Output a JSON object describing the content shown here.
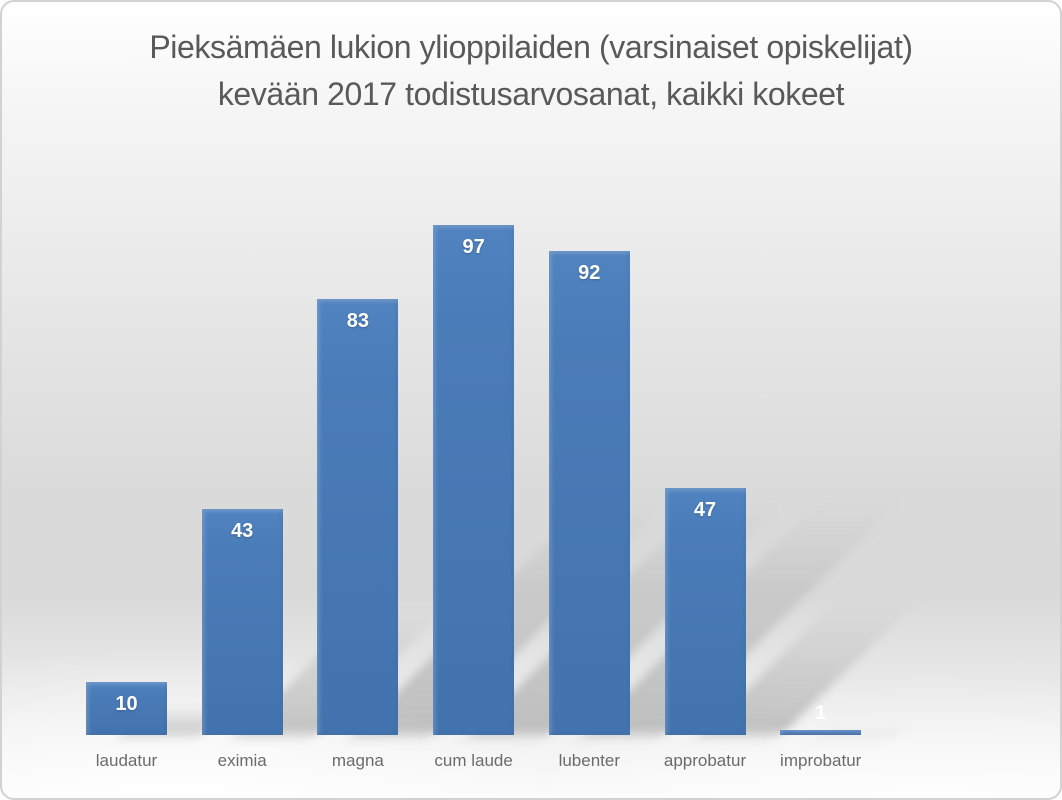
{
  "chart_data": {
    "type": "bar",
    "title": "Pieksämäen lukion ylioppilaiden (varsinaiset opiskelijat) kevään 2017 todistusarvosanat, kaikki kokeet",
    "title_line1": "Pieksämäen lukion ylioppilaiden (varsinaiset opiskelijat)",
    "title_line2": "kevään 2017 todistusarvosanat, kaikki kokeet",
    "categories": [
      "laudatur",
      "eximia",
      "magna",
      "cum laude",
      "lubenter",
      "approbatur",
      "improbatur"
    ],
    "values": [
      10,
      43,
      83,
      97,
      92,
      47,
      1
    ],
    "xlabel": "",
    "ylabel": "",
    "ylim": [
      0,
      100
    ],
    "grid": false,
    "legend": false,
    "axes_visible": false,
    "data_labels": "white, bold, inside end (outside for smallest bar)",
    "colors": {
      "bar_fill_top": "#5083BF",
      "bar_fill_bottom": "#4373AE",
      "data_label": "#FFFFFF",
      "title_text": "#595959",
      "category_label_text": "#6B6B6B",
      "background_gray": "#D9D9D9",
      "frame_border": "#D2D2D2"
    }
  }
}
